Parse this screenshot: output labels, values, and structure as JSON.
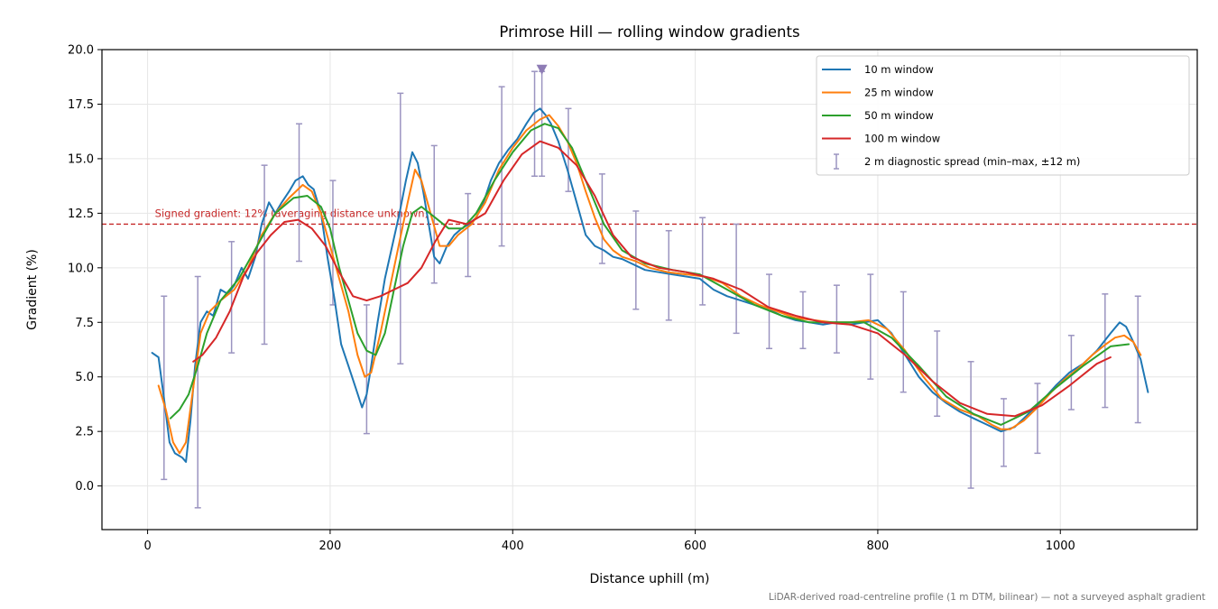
{
  "chart_data": {
    "type": "line",
    "title": "Primrose Hill — rolling window gradients",
    "xlabel": "Distance uphill (m)",
    "ylabel": "Gradient (%)",
    "xlim": [
      -50,
      1150
    ],
    "ylim": [
      -2.0,
      20.0
    ],
    "xticks": [
      0,
      200,
      400,
      600,
      800,
      1000
    ],
    "yticks": [
      0.0,
      2.5,
      5.0,
      7.5,
      10.0,
      12.5,
      15.0,
      17.5,
      20.0
    ],
    "xtick_labels": [
      "0",
      "200",
      "400",
      "600",
      "800",
      "1000"
    ],
    "ytick_labels": [
      "0.0",
      "2.5",
      "5.0",
      "7.5",
      "10.0",
      "12.5",
      "15.0",
      "17.5",
      "20.0"
    ],
    "grid": true,
    "legend_position": "top-right",
    "reference_line": {
      "y": 12,
      "label": "Signed gradient: 12% (averaging distance unknown)",
      "color": "#c62828"
    },
    "peak_marker": {
      "x": 432,
      "y": 19.1,
      "color": "#8e7cb5"
    },
    "series": [
      {
        "name": "10 m window",
        "color": "#1f77b4",
        "x": [
          5,
          12,
          18,
          24,
          30,
          38,
          42,
          47,
          52,
          58,
          65,
          72,
          80,
          88,
          95,
          103,
          110,
          118,
          125,
          133,
          140,
          147,
          155,
          162,
          170,
          176,
          182,
          190,
          197,
          205,
          212,
          220,
          228,
          235,
          240,
          245,
          252,
          260,
          268,
          276,
          283,
          290,
          296,
          302,
          308,
          314,
          320,
          328,
          336,
          344,
          352,
          360,
          368,
          376,
          385,
          395,
          405,
          415,
          423,
          430,
          436,
          442,
          450,
          460,
          470,
          480,
          490,
          500,
          510,
          520,
          530,
          545,
          560,
          575,
          590,
          605,
          620,
          635,
          650,
          665,
          680,
          695,
          710,
          725,
          740,
          755,
          770,
          785,
          800,
          815,
          830,
          845,
          860,
          875,
          890,
          905,
          920,
          935,
          950,
          965,
          980,
          995,
          1010,
          1025,
          1040,
          1055,
          1065,
          1072,
          1080,
          1088,
          1096
        ],
        "values": [
          6.1,
          5.9,
          4.0,
          2.0,
          1.5,
          1.3,
          1.1,
          3.0,
          5.5,
          7.5,
          8.0,
          7.8,
          9.0,
          8.8,
          9.2,
          10.0,
          9.5,
          10.5,
          12.0,
          13.0,
          12.5,
          13.0,
          13.5,
          14.0,
          14.2,
          13.8,
          13.6,
          12.5,
          10.5,
          8.5,
          6.5,
          5.5,
          4.5,
          3.6,
          4.2,
          5.5,
          7.5,
          9.5,
          11.0,
          12.5,
          14.0,
          15.3,
          14.8,
          13.5,
          12.0,
          10.5,
          10.2,
          11.0,
          11.5,
          11.8,
          12.0,
          12.3,
          13.0,
          14.0,
          14.8,
          15.4,
          15.9,
          16.6,
          17.1,
          17.3,
          17.0,
          16.6,
          15.8,
          14.5,
          13.0,
          11.5,
          11.0,
          10.8,
          10.5,
          10.4,
          10.2,
          9.9,
          9.8,
          9.7,
          9.6,
          9.5,
          9.0,
          8.7,
          8.5,
          8.3,
          8.1,
          7.8,
          7.6,
          7.5,
          7.4,
          7.5,
          7.4,
          7.5,
          7.6,
          7.0,
          6.0,
          5.0,
          4.3,
          3.8,
          3.4,
          3.1,
          2.8,
          2.5,
          2.7,
          3.3,
          3.9,
          4.6,
          5.2,
          5.6,
          6.2,
          7.0,
          7.5,
          7.3,
          6.6,
          5.8,
          4.3
        ]
      },
      {
        "name": "25 m window",
        "color": "#ff7f0e",
        "x": [
          12,
          20,
          28,
          35,
          42,
          50,
          58,
          68,
          80,
          95,
          110,
          125,
          140,
          155,
          170,
          180,
          190,
          200,
          210,
          220,
          230,
          238,
          245,
          255,
          265,
          275,
          285,
          293,
          300,
          310,
          320,
          330,
          340,
          355,
          370,
          385,
          400,
          415,
          430,
          440,
          450,
          460,
          470,
          480,
          490,
          500,
          510,
          520,
          535,
          550,
          570,
          590,
          610,
          630,
          650,
          670,
          690,
          710,
          730,
          750,
          770,
          790,
          810,
          830,
          850,
          870,
          890,
          910,
          925,
          935,
          945,
          960,
          975,
          990,
          1005,
          1020,
          1035,
          1050,
          1060,
          1070,
          1080,
          1088
        ],
        "values": [
          4.6,
          3.5,
          2.0,
          1.5,
          2.0,
          4.5,
          7.0,
          8.0,
          8.5,
          9.0,
          10.0,
          11.5,
          12.5,
          13.2,
          13.8,
          13.5,
          12.5,
          11.0,
          9.5,
          8.0,
          6.0,
          5.0,
          5.2,
          7.0,
          9.0,
          11.0,
          13.0,
          14.5,
          14.0,
          12.5,
          11.0,
          11.0,
          11.5,
          12.0,
          13.0,
          14.5,
          15.5,
          16.3,
          16.8,
          17.0,
          16.5,
          15.8,
          14.8,
          13.5,
          12.3,
          11.3,
          10.8,
          10.5,
          10.3,
          10.0,
          9.8,
          9.7,
          9.6,
          9.3,
          8.7,
          8.3,
          8.0,
          7.7,
          7.6,
          7.5,
          7.5,
          7.6,
          7.2,
          6.2,
          5.0,
          4.0,
          3.5,
          3.2,
          2.8,
          2.6,
          2.6,
          3.0,
          3.6,
          4.3,
          4.9,
          5.4,
          6.0,
          6.5,
          6.8,
          6.9,
          6.6,
          6.0
        ]
      },
      {
        "name": "50 m window",
        "color": "#2ca02c",
        "x": [
          25,
          35,
          45,
          55,
          65,
          80,
          100,
          120,
          140,
          160,
          175,
          190,
          200,
          210,
          220,
          230,
          240,
          250,
          260,
          270,
          280,
          290,
          300,
          315,
          330,
          345,
          360,
          380,
          400,
          420,
          435,
          450,
          465,
          480,
          500,
          520,
          545,
          575,
          605,
          635,
          665,
          695,
          725,
          755,
          785,
          815,
          845,
          875,
          905,
          935,
          965,
          995,
          1025,
          1055,
          1075
        ],
        "values": [
          3.1,
          3.5,
          4.2,
          5.5,
          7.0,
          8.5,
          9.5,
          11.0,
          12.5,
          13.2,
          13.3,
          12.8,
          11.8,
          10.0,
          8.5,
          7.0,
          6.2,
          6.0,
          7.0,
          9.0,
          11.0,
          12.5,
          12.8,
          12.3,
          11.8,
          11.8,
          12.5,
          14.0,
          15.3,
          16.3,
          16.6,
          16.4,
          15.5,
          14.0,
          12.0,
          10.8,
          10.2,
          9.9,
          9.7,
          9.0,
          8.3,
          7.8,
          7.5,
          7.5,
          7.5,
          6.8,
          5.5,
          4.1,
          3.3,
          2.8,
          3.4,
          4.5,
          5.5,
          6.4,
          6.5
        ]
      },
      {
        "name": "100 m window",
        "color": "#d62728",
        "x": [
          50,
          60,
          75,
          90,
          105,
          120,
          135,
          150,
          165,
          180,
          195,
          210,
          225,
          240,
          255,
          270,
          285,
          300,
          315,
          330,
          350,
          370,
          390,
          410,
          430,
          450,
          470,
          490,
          510,
          530,
          560,
          590,
          620,
          650,
          680,
          710,
          740,
          770,
          800,
          830,
          860,
          890,
          920,
          950,
          980,
          1010,
          1040,
          1055
        ],
        "values": [
          5.7,
          6.0,
          6.8,
          8.0,
          9.6,
          10.7,
          11.5,
          12.1,
          12.2,
          11.8,
          11.0,
          9.8,
          8.7,
          8.5,
          8.7,
          9.0,
          9.3,
          10.0,
          11.2,
          12.2,
          12.0,
          12.5,
          14.0,
          15.2,
          15.8,
          15.5,
          14.7,
          13.3,
          11.5,
          10.5,
          10.0,
          9.8,
          9.5,
          9.0,
          8.2,
          7.8,
          7.5,
          7.4,
          7.0,
          6.0,
          4.8,
          3.8,
          3.3,
          3.2,
          3.7,
          4.6,
          5.6,
          5.9
        ]
      }
    ],
    "errorbars": {
      "name": "2 m diagnostic spread (min–max, ±12 m)",
      "color": "#9b94c0",
      "points": [
        {
          "x": 18,
          "low": 0.3,
          "high": 8.7
        },
        {
          "x": 55,
          "low": -1.0,
          "high": 9.6
        },
        {
          "x": 92,
          "low": 6.1,
          "high": 11.2
        },
        {
          "x": 128,
          "low": 6.5,
          "high": 14.7
        },
        {
          "x": 166,
          "low": 10.3,
          "high": 16.6
        },
        {
          "x": 203,
          "low": 8.3,
          "high": 14.0
        },
        {
          "x": 240,
          "low": 2.4,
          "high": 8.3
        },
        {
          "x": 277,
          "low": 5.6,
          "high": 18.0
        },
        {
          "x": 314,
          "low": 9.3,
          "high": 15.6
        },
        {
          "x": 351,
          "low": 9.6,
          "high": 13.4
        },
        {
          "x": 388,
          "low": 11.0,
          "high": 18.3
        },
        {
          "x": 424,
          "low": 14.2,
          "high": 19.0
        },
        {
          "x": 432,
          "low": 14.2,
          "high": 19.0
        },
        {
          "x": 461,
          "low": 13.5,
          "high": 17.3
        },
        {
          "x": 498,
          "low": 10.2,
          "high": 14.3
        },
        {
          "x": 535,
          "low": 8.1,
          "high": 12.6
        },
        {
          "x": 571,
          "low": 7.6,
          "high": 11.7
        },
        {
          "x": 608,
          "low": 8.3,
          "high": 12.3
        },
        {
          "x": 645,
          "low": 7.0,
          "high": 12.0
        },
        {
          "x": 681,
          "low": 6.3,
          "high": 9.7
        },
        {
          "x": 718,
          "low": 6.3,
          "high": 8.9
        },
        {
          "x": 755,
          "low": 6.1,
          "high": 9.2
        },
        {
          "x": 792,
          "low": 4.9,
          "high": 9.7
        },
        {
          "x": 828,
          "low": 4.3,
          "high": 8.9
        },
        {
          "x": 865,
          "low": 3.2,
          "high": 7.1
        },
        {
          "x": 902,
          "low": -0.1,
          "high": 5.7
        },
        {
          "x": 938,
          "low": 0.9,
          "high": 4.0
        },
        {
          "x": 975,
          "low": 1.5,
          "high": 4.7
        },
        {
          "x": 1012,
          "low": 3.5,
          "high": 6.9
        },
        {
          "x": 1049,
          "low": 3.6,
          "high": 8.8
        },
        {
          "x": 1085,
          "low": 2.9,
          "high": 8.7
        }
      ]
    },
    "footnote": "LiDAR-derived road-centreline profile (1 m DTM, bilinear) — not a surveyed asphalt gradient"
  }
}
